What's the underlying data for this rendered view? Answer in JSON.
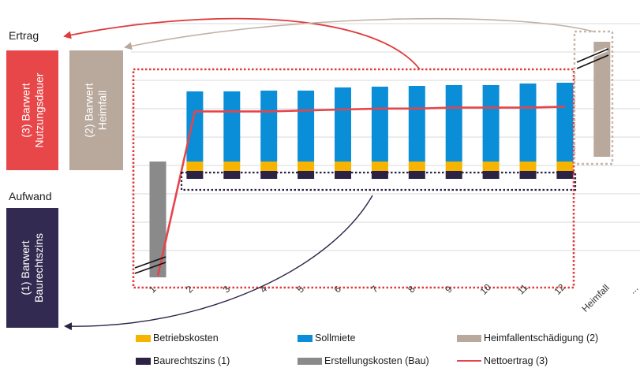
{
  "labels": {
    "ertrag": "Ertrag",
    "aufwand": "Aufwand",
    "box3": [
      "(3) Barwert",
      "Nutzungsdauer"
    ],
    "box2": [
      "(2) Barwert",
      "Heimfall"
    ],
    "box1": [
      "(1) Barwert",
      "Baurechtszins"
    ]
  },
  "colors": {
    "betriebskosten": "#f6b400",
    "sollmiete": "#0a8ed8",
    "heimfall": "#b9a89c",
    "baurechtszins": "#2c2244",
    "erstellung": "#8a8a8a",
    "nettoertrag": "#e5454a",
    "box3": "#e8474a",
    "box2": "#b9a89c",
    "box1": "#322a50",
    "grid": "#d9d9d9",
    "dotted_red": "#e03a3c",
    "dotted_navy": "#2c2244",
    "dotted_tan": "#c8b8ac"
  },
  "chart_data": {
    "type": "bar",
    "categories": [
      "1",
      "2",
      "3",
      "4",
      "5",
      "6",
      "7",
      "8",
      "9",
      "10",
      "11",
      "12",
      "Heimfall",
      "..."
    ],
    "series": [
      {
        "name": "Betriebskosten",
        "values": [
          null,
          12,
          12,
          12,
          12,
          12,
          12,
          12,
          12,
          12,
          12,
          12,
          null,
          null
        ]
      },
      {
        "name": "Sollmiete",
        "values": [
          null,
          89,
          89,
          90,
          90,
          94,
          95,
          96,
          97,
          97,
          99,
          100,
          null,
          null
        ]
      },
      {
        "name": "Heimfallentschädigung (2)",
        "values": [
          null,
          null,
          null,
          null,
          null,
          null,
          null,
          null,
          null,
          null,
          null,
          null,
          140,
          null
        ]
      },
      {
        "name": "Baurechtszins (1)",
        "values": [
          null,
          -8,
          -8,
          -8,
          -8,
          -8,
          -8,
          -8,
          -8,
          -8,
          -8,
          -8,
          null,
          null
        ]
      },
      {
        "name": "Erstellungskosten (Bau)",
        "values": [
          -150,
          null,
          null,
          null,
          null,
          null,
          null,
          null,
          null,
          null,
          null,
          null,
          null,
          null
        ]
      },
      {
        "name": "Nettoertrag (3)",
        "type": "line",
        "values": [
          -150,
          63,
          63,
          63,
          64,
          65,
          66,
          66,
          67,
          67,
          67,
          68,
          null,
          null
        ]
      }
    ],
    "legend": [
      "Betriebskosten",
      "Sollmiete",
      "Heimfallentschädigung (2)",
      "Baurechtszins (1)",
      "Erstellungskosten (Bau)",
      "Nettoertrag (3)"
    ],
    "legend_position": "bottom",
    "grid": true,
    "axis_break": true
  }
}
